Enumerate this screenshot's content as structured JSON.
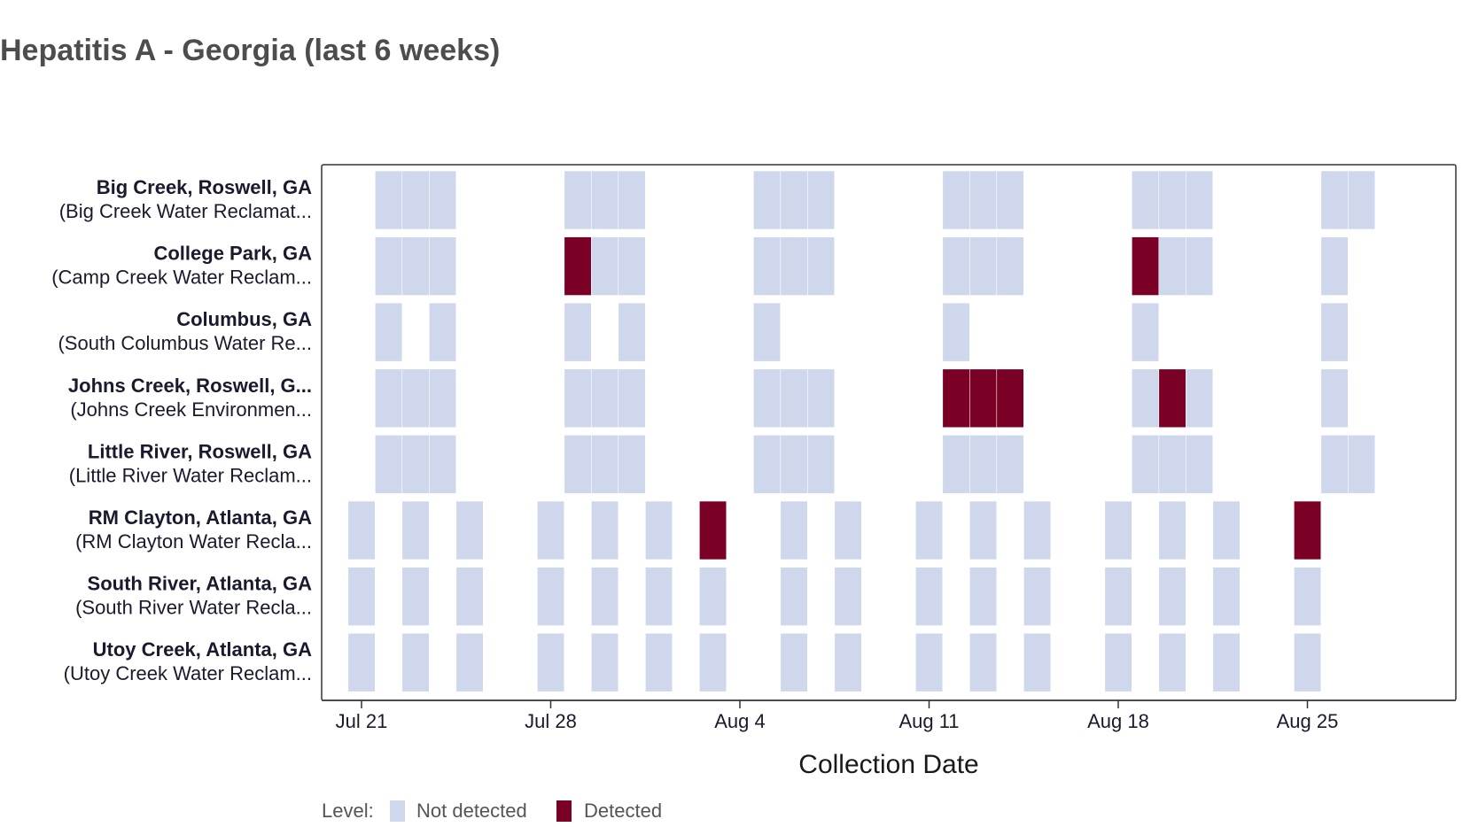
{
  "chart_data": {
    "type": "heatmap",
    "title": "Hepatitis A - Georgia (last 6 weeks)",
    "xlabel": "Collection Date",
    "xlim": [
      "2024-07-20",
      "2024-08-30"
    ],
    "x_ticks": [
      {
        "date": "2024-07-21",
        "label": "Jul 21"
      },
      {
        "date": "2024-07-28",
        "label": "Jul 28"
      },
      {
        "date": "2024-08-04",
        "label": "Aug 4"
      },
      {
        "date": "2024-08-11",
        "label": "Aug 11"
      },
      {
        "date": "2024-08-18",
        "label": "Aug 18"
      },
      {
        "date": "2024-08-25",
        "label": "Aug 25"
      }
    ],
    "legend": {
      "title": "Level:",
      "position": "bottom-left",
      "items": [
        {
          "label": "Not detected",
          "color": "#cfd7ec"
        },
        {
          "label": "Detected",
          "color": "#7a0026"
        }
      ]
    },
    "sites": [
      {
        "name": "Big Creek, Roswell, GA",
        "plant": "(Big Creek Water Reclamat...",
        "samples": [
          {
            "date": "2024-07-22",
            "level": "Not detected"
          },
          {
            "date": "2024-07-23",
            "level": "Not detected"
          },
          {
            "date": "2024-07-24",
            "level": "Not detected"
          },
          {
            "date": "2024-07-29",
            "level": "Not detected"
          },
          {
            "date": "2024-07-30",
            "level": "Not detected"
          },
          {
            "date": "2024-07-31",
            "level": "Not detected"
          },
          {
            "date": "2024-08-05",
            "level": "Not detected"
          },
          {
            "date": "2024-08-06",
            "level": "Not detected"
          },
          {
            "date": "2024-08-07",
            "level": "Not detected"
          },
          {
            "date": "2024-08-12",
            "level": "Not detected"
          },
          {
            "date": "2024-08-13",
            "level": "Not detected"
          },
          {
            "date": "2024-08-14",
            "level": "Not detected"
          },
          {
            "date": "2024-08-19",
            "level": "Not detected"
          },
          {
            "date": "2024-08-20",
            "level": "Not detected"
          },
          {
            "date": "2024-08-21",
            "level": "Not detected"
          },
          {
            "date": "2024-08-26",
            "level": "Not detected"
          },
          {
            "date": "2024-08-27",
            "level": "Not detected"
          }
        ]
      },
      {
        "name": "College Park, GA",
        "plant": "(Camp Creek Water Reclam...",
        "samples": [
          {
            "date": "2024-07-22",
            "level": "Not detected"
          },
          {
            "date": "2024-07-23",
            "level": "Not detected"
          },
          {
            "date": "2024-07-24",
            "level": "Not detected"
          },
          {
            "date": "2024-07-29",
            "level": "Detected"
          },
          {
            "date": "2024-07-30",
            "level": "Not detected"
          },
          {
            "date": "2024-07-31",
            "level": "Not detected"
          },
          {
            "date": "2024-08-05",
            "level": "Not detected"
          },
          {
            "date": "2024-08-06",
            "level": "Not detected"
          },
          {
            "date": "2024-08-07",
            "level": "Not detected"
          },
          {
            "date": "2024-08-12",
            "level": "Not detected"
          },
          {
            "date": "2024-08-13",
            "level": "Not detected"
          },
          {
            "date": "2024-08-14",
            "level": "Not detected"
          },
          {
            "date": "2024-08-19",
            "level": "Detected"
          },
          {
            "date": "2024-08-20",
            "level": "Not detected"
          },
          {
            "date": "2024-08-21",
            "level": "Not detected"
          },
          {
            "date": "2024-08-26",
            "level": "Not detected"
          }
        ]
      },
      {
        "name": "Columbus, GA",
        "plant": "(South Columbus Water Re...",
        "samples": [
          {
            "date": "2024-07-22",
            "level": "Not detected"
          },
          {
            "date": "2024-07-24",
            "level": "Not detected"
          },
          {
            "date": "2024-07-29",
            "level": "Not detected"
          },
          {
            "date": "2024-07-31",
            "level": "Not detected"
          },
          {
            "date": "2024-08-05",
            "level": "Not detected"
          },
          {
            "date": "2024-08-12",
            "level": "Not detected"
          },
          {
            "date": "2024-08-19",
            "level": "Not detected"
          },
          {
            "date": "2024-08-26",
            "level": "Not detected"
          }
        ]
      },
      {
        "name": "Johns Creek, Roswell, G...",
        "plant": "(Johns Creek Environmen...",
        "samples": [
          {
            "date": "2024-07-22",
            "level": "Not detected"
          },
          {
            "date": "2024-07-23",
            "level": "Not detected"
          },
          {
            "date": "2024-07-24",
            "level": "Not detected"
          },
          {
            "date": "2024-07-29",
            "level": "Not detected"
          },
          {
            "date": "2024-07-30",
            "level": "Not detected"
          },
          {
            "date": "2024-07-31",
            "level": "Not detected"
          },
          {
            "date": "2024-08-05",
            "level": "Not detected"
          },
          {
            "date": "2024-08-06",
            "level": "Not detected"
          },
          {
            "date": "2024-08-07",
            "level": "Not detected"
          },
          {
            "date": "2024-08-12",
            "level": "Detected"
          },
          {
            "date": "2024-08-13",
            "level": "Detected"
          },
          {
            "date": "2024-08-14",
            "level": "Detected"
          },
          {
            "date": "2024-08-19",
            "level": "Not detected"
          },
          {
            "date": "2024-08-20",
            "level": "Detected"
          },
          {
            "date": "2024-08-21",
            "level": "Not detected"
          },
          {
            "date": "2024-08-26",
            "level": "Not detected"
          }
        ]
      },
      {
        "name": "Little River, Roswell, GA",
        "plant": "(Little River Water Reclam...",
        "samples": [
          {
            "date": "2024-07-22",
            "level": "Not detected"
          },
          {
            "date": "2024-07-23",
            "level": "Not detected"
          },
          {
            "date": "2024-07-24",
            "level": "Not detected"
          },
          {
            "date": "2024-07-29",
            "level": "Not detected"
          },
          {
            "date": "2024-07-30",
            "level": "Not detected"
          },
          {
            "date": "2024-07-31",
            "level": "Not detected"
          },
          {
            "date": "2024-08-05",
            "level": "Not detected"
          },
          {
            "date": "2024-08-06",
            "level": "Not detected"
          },
          {
            "date": "2024-08-07",
            "level": "Not detected"
          },
          {
            "date": "2024-08-12",
            "level": "Not detected"
          },
          {
            "date": "2024-08-13",
            "level": "Not detected"
          },
          {
            "date": "2024-08-14",
            "level": "Not detected"
          },
          {
            "date": "2024-08-19",
            "level": "Not detected"
          },
          {
            "date": "2024-08-20",
            "level": "Not detected"
          },
          {
            "date": "2024-08-21",
            "level": "Not detected"
          },
          {
            "date": "2024-08-26",
            "level": "Not detected"
          },
          {
            "date": "2024-08-27",
            "level": "Not detected"
          }
        ]
      },
      {
        "name": "RM Clayton, Atlanta, GA",
        "plant": "(RM Clayton Water Recla...",
        "samples": [
          {
            "date": "2024-07-21",
            "level": "Not detected"
          },
          {
            "date": "2024-07-23",
            "level": "Not detected"
          },
          {
            "date": "2024-07-25",
            "level": "Not detected"
          },
          {
            "date": "2024-07-28",
            "level": "Not detected"
          },
          {
            "date": "2024-07-30",
            "level": "Not detected"
          },
          {
            "date": "2024-08-01",
            "level": "Not detected"
          },
          {
            "date": "2024-08-03",
            "level": "Detected"
          },
          {
            "date": "2024-08-06",
            "level": "Not detected"
          },
          {
            "date": "2024-08-08",
            "level": "Not detected"
          },
          {
            "date": "2024-08-11",
            "level": "Not detected"
          },
          {
            "date": "2024-08-13",
            "level": "Not detected"
          },
          {
            "date": "2024-08-15",
            "level": "Not detected"
          },
          {
            "date": "2024-08-18",
            "level": "Not detected"
          },
          {
            "date": "2024-08-20",
            "level": "Not detected"
          },
          {
            "date": "2024-08-22",
            "level": "Not detected"
          },
          {
            "date": "2024-08-25",
            "level": "Detected"
          }
        ]
      },
      {
        "name": "South River, Atlanta, GA",
        "plant": "(South River Water Recla...",
        "samples": [
          {
            "date": "2024-07-21",
            "level": "Not detected"
          },
          {
            "date": "2024-07-23",
            "level": "Not detected"
          },
          {
            "date": "2024-07-25",
            "level": "Not detected"
          },
          {
            "date": "2024-07-28",
            "level": "Not detected"
          },
          {
            "date": "2024-07-30",
            "level": "Not detected"
          },
          {
            "date": "2024-08-01",
            "level": "Not detected"
          },
          {
            "date": "2024-08-03",
            "level": "Not detected"
          },
          {
            "date": "2024-08-06",
            "level": "Not detected"
          },
          {
            "date": "2024-08-08",
            "level": "Not detected"
          },
          {
            "date": "2024-08-11",
            "level": "Not detected"
          },
          {
            "date": "2024-08-13",
            "level": "Not detected"
          },
          {
            "date": "2024-08-15",
            "level": "Not detected"
          },
          {
            "date": "2024-08-18",
            "level": "Not detected"
          },
          {
            "date": "2024-08-20",
            "level": "Not detected"
          },
          {
            "date": "2024-08-22",
            "level": "Not detected"
          },
          {
            "date": "2024-08-25",
            "level": "Not detected"
          }
        ]
      },
      {
        "name": "Utoy Creek, Atlanta, GA",
        "plant": "(Utoy Creek Water Reclam...",
        "samples": [
          {
            "date": "2024-07-21",
            "level": "Not detected"
          },
          {
            "date": "2024-07-23",
            "level": "Not detected"
          },
          {
            "date": "2024-07-25",
            "level": "Not detected"
          },
          {
            "date": "2024-07-28",
            "level": "Not detected"
          },
          {
            "date": "2024-07-30",
            "level": "Not detected"
          },
          {
            "date": "2024-08-01",
            "level": "Not detected"
          },
          {
            "date": "2024-08-03",
            "level": "Not detected"
          },
          {
            "date": "2024-08-06",
            "level": "Not detected"
          },
          {
            "date": "2024-08-08",
            "level": "Not detected"
          },
          {
            "date": "2024-08-11",
            "level": "Not detected"
          },
          {
            "date": "2024-08-13",
            "level": "Not detected"
          },
          {
            "date": "2024-08-15",
            "level": "Not detected"
          },
          {
            "date": "2024-08-18",
            "level": "Not detected"
          },
          {
            "date": "2024-08-20",
            "level": "Not detected"
          },
          {
            "date": "2024-08-22",
            "level": "Not detected"
          },
          {
            "date": "2024-08-25",
            "level": "Not detected"
          }
        ]
      }
    ]
  }
}
